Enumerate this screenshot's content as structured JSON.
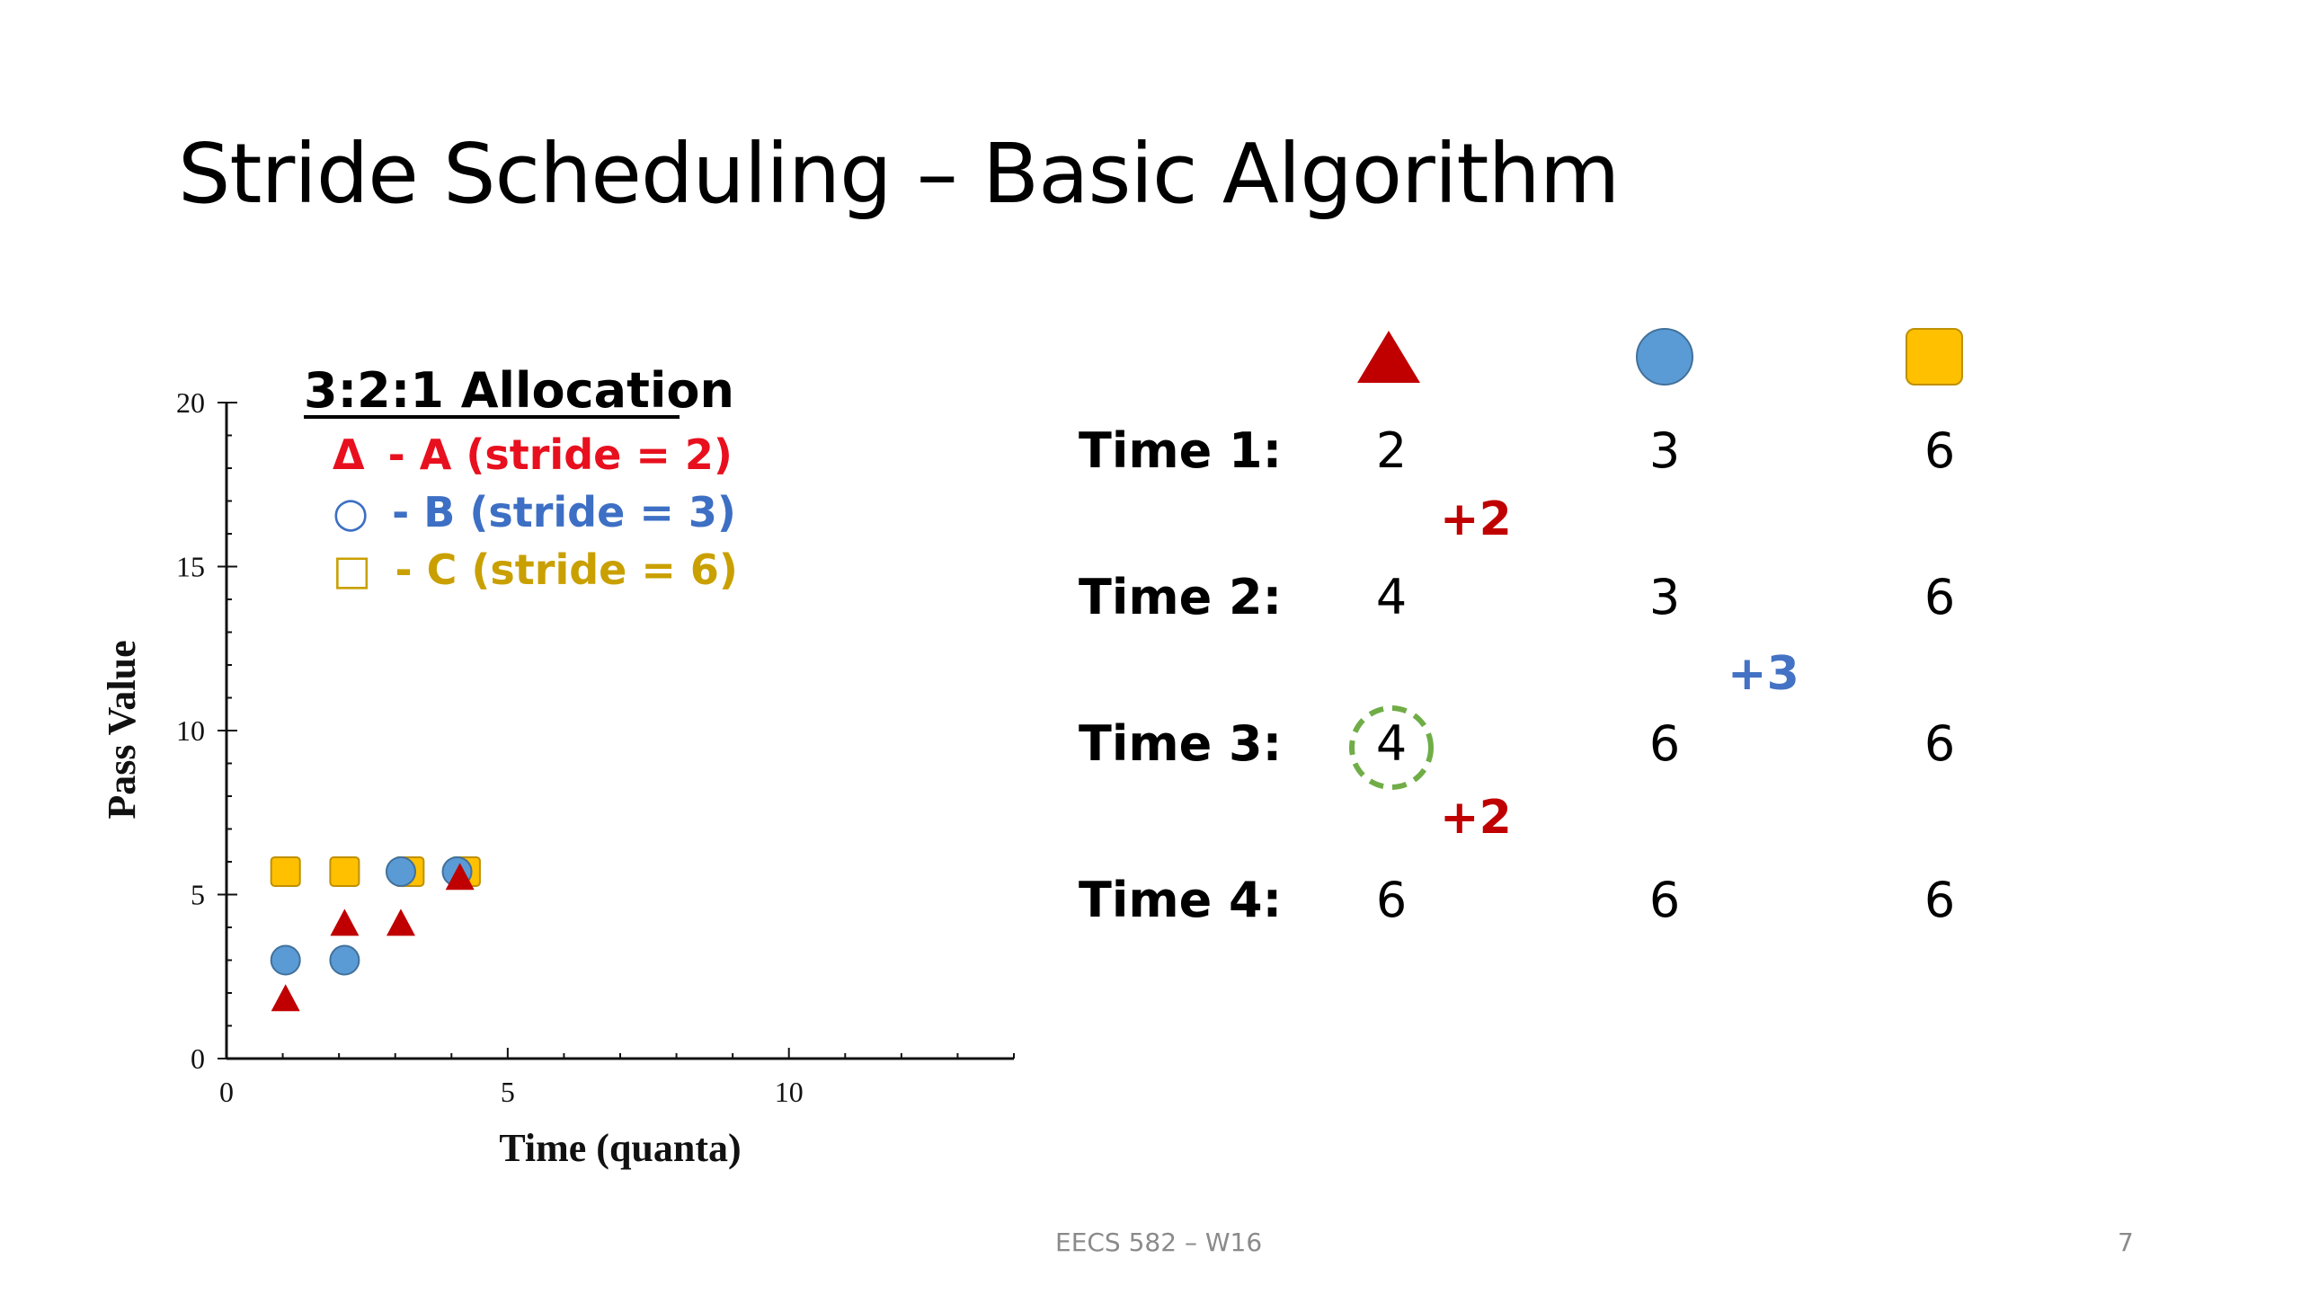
{
  "slide": {
    "title": "Stride Scheduling – Basic Algorithm",
    "footer_text": "EECS 582 – W16",
    "page_number": "7"
  },
  "chart_data": {
    "type": "scatter",
    "title": "",
    "xlabel": "Time (quanta)",
    "ylabel": "Pass Value",
    "xlim": [
      0,
      14
    ],
    "ylim": [
      0,
      20
    ],
    "x_ticks": [
      0,
      5,
      10
    ],
    "y_ticks": [
      0,
      5,
      10,
      15,
      20
    ],
    "grid": false,
    "legend": {
      "title": "3:2:1 Allocation",
      "placement": "top-left",
      "entries": [
        {
          "symbol": "Δ",
          "text": "- A (stride = 2)",
          "color": "#e8101e"
        },
        {
          "symbol": "○",
          "text": "- B (stride = 3)",
          "color": "#3d6fc4"
        },
        {
          "symbol": "□",
          "text": "- C (stride = 6)",
          "color": "#c9a000"
        }
      ]
    },
    "series": [
      {
        "marker": "triangle",
        "color": "#c00000",
        "points": [
          [
            1.05,
            1.8
          ],
          [
            2.1,
            4.1
          ],
          [
            3.1,
            4.1
          ],
          [
            4.15,
            5.5
          ]
        ]
      },
      {
        "marker": "circle",
        "color": "#5b9bd5",
        "points": [
          [
            1.05,
            3.0
          ],
          [
            2.1,
            3.0
          ],
          [
            3.1,
            5.7
          ],
          [
            4.1,
            5.7
          ]
        ]
      },
      {
        "marker": "square",
        "color": "#ffc000",
        "points": [
          [
            1.05,
            5.7
          ],
          [
            2.1,
            5.7
          ],
          [
            3.25,
            5.7
          ],
          [
            4.25,
            5.7
          ]
        ]
      }
    ]
  },
  "table": {
    "header_icons": [
      {
        "name": "triangle-icon",
        "color": "#c00000"
      },
      {
        "name": "circle-icon",
        "color": "#5b9bd5"
      },
      {
        "name": "square-icon",
        "color": "#ffc000"
      }
    ],
    "rows": [
      {
        "label": "Time 1:",
        "values": [
          "2",
          "3",
          "6"
        ]
      },
      {
        "label": "Time 2:",
        "values": [
          "4",
          "3",
          "6"
        ]
      },
      {
        "label": "Time 3:",
        "values": [
          "4",
          "6",
          "6"
        ]
      },
      {
        "label": "Time 4:",
        "values": [
          "6",
          "6",
          "6"
        ]
      }
    ],
    "increments": [
      {
        "text": "+2",
        "color": "#c00000"
      },
      {
        "text": "+3",
        "color": "#4472c4"
      },
      {
        "text": "+2",
        "color": "#c00000"
      }
    ],
    "highlight_color": "#70ad47"
  }
}
